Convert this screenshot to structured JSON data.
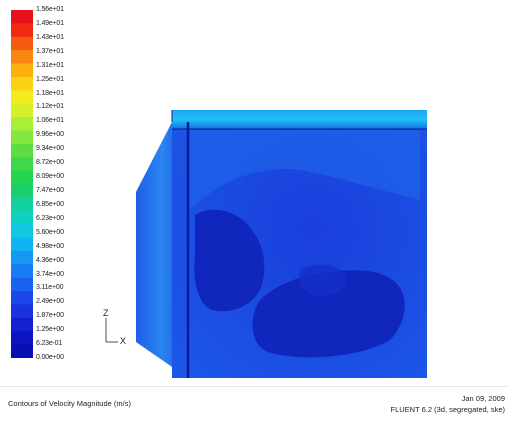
{
  "legend": {
    "labels": [
      "1.56e+01",
      "1.49e+01",
      "1.43e+01",
      "1.37e+01",
      "1.31e+01",
      "1.25e+01",
      "1.18e+01",
      "1.12e+01",
      "1.06e+01",
      "9.96e+00",
      "9.34e+00",
      "8.72e+00",
      "8.09e+00",
      "7.47e+00",
      "6.85e+00",
      "6.23e+00",
      "5.60e+00",
      "4.98e+00",
      "4.36e+00",
      "3.74e+00",
      "3.11e+00",
      "2.49e+00",
      "1.87e+00",
      "1.25e+00",
      "6.23e-01",
      "0.00e+00"
    ],
    "colors": [
      "#e8101a",
      "#ef2a12",
      "#f55a10",
      "#f98810",
      "#fbb010",
      "#f9d214",
      "#f2ec1e",
      "#d4f02a",
      "#aaef36",
      "#84e63e",
      "#5edc44",
      "#3ed84a",
      "#22d450",
      "#1ccf6c",
      "#14d09c",
      "#10d0c4",
      "#10c8e2",
      "#10b4f0",
      "#1498f4",
      "#1a7cf4",
      "#1a62f0",
      "#1a48ea",
      "#1a32e0",
      "#1420d4",
      "#0c14c4",
      "#0810b4"
    ]
  },
  "axes": {
    "vertical": "Z",
    "horizontal": "X"
  },
  "footer": {
    "title": "Contours of Velocity Magnitude (m/s)",
    "date": "Jan 09, 2009",
    "solver": "FLUENT 6.2 (3d, segregated, ske)"
  }
}
